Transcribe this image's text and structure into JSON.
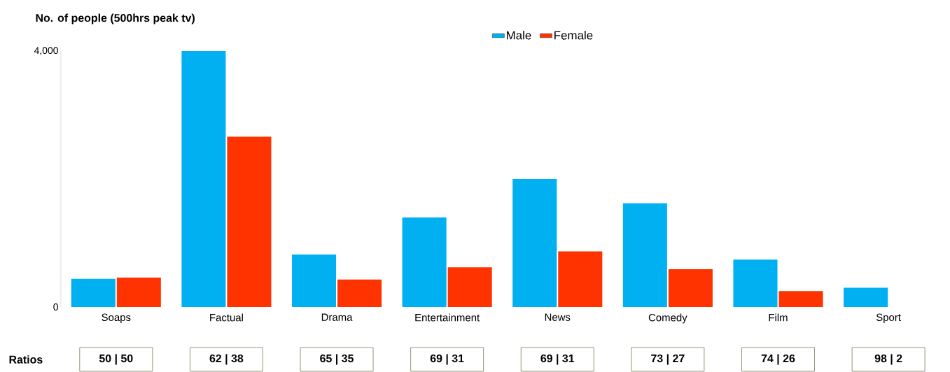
{
  "chart_data": {
    "type": "bar",
    "ylabel": "No. of people (500hrs peak tv)",
    "categories": [
      "Soaps",
      "Factual",
      "Drama",
      "Entertainment",
      "News",
      "Comedy",
      "Film",
      "Sport"
    ],
    "series": [
      {
        "name": "Male",
        "color": "#00b0f0",
        "values": [
          440,
          4000,
          820,
          1400,
          2000,
          1620,
          740,
          300
        ]
      },
      {
        "name": "Female",
        "color": "#ff3300",
        "values": [
          460,
          2660,
          430,
          620,
          870,
          590,
          250,
          0
        ]
      }
    ],
    "ylim": [
      0,
      4000
    ],
    "yticks": [
      {
        "value": 0,
        "label": "0"
      },
      {
        "value": 4000,
        "label": "4,000"
      }
    ],
    "legend": "top",
    "grid": false,
    "annotations": [
      "Ratios",
      "50 | 50",
      "62 | 38",
      "65 | 35",
      "69 | 31",
      "69 | 31",
      "73 | 27",
      "74 | 26",
      "98 | 2"
    ]
  }
}
